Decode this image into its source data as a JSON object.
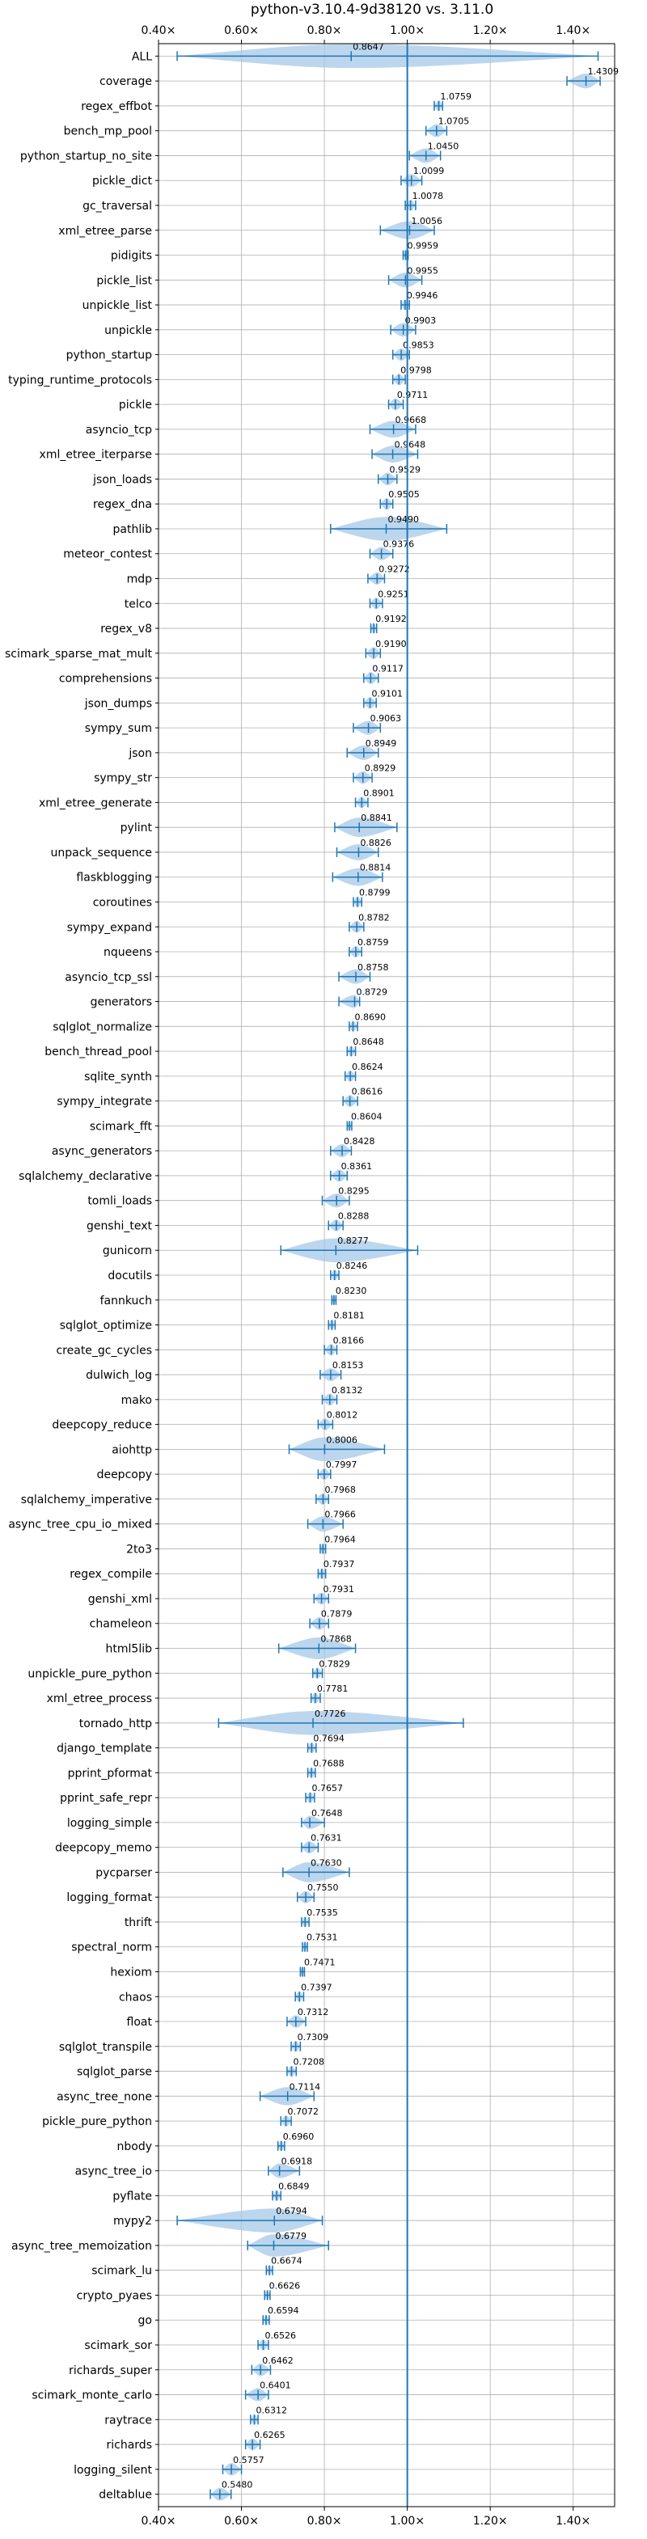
{
  "chart_data": {
    "type": "violin",
    "title": "python-v3.10.4-9d38120 vs. 3.11.0",
    "orientation": "horizontal",
    "xlim": [
      0.4,
      1.5
    ],
    "xticks": [
      0.4,
      0.6,
      0.8,
      1.0,
      1.2,
      1.4
    ],
    "xtick_labels": [
      "0.40×",
      "0.60×",
      "0.80×",
      "1.00×",
      "1.20×",
      "1.40×"
    ],
    "reference_line": 1.0,
    "grid": true,
    "colors": {
      "fill": "#a6c8e8",
      "line": "#1f77b4",
      "grid": "#b0b0b0"
    },
    "benchmarks": [
      {
        "name": "ALL",
        "value": 0.8647,
        "label": "0.8647",
        "min": 0.445,
        "max": 1.46
      },
      {
        "name": "coverage",
        "value": 1.4309,
        "label": "1.4309",
        "min": 1.385,
        "max": 1.465
      },
      {
        "name": "regex_effbot",
        "value": 1.0759,
        "label": "1.0759",
        "min": 1.065,
        "max": 1.085
      },
      {
        "name": "bench_mp_pool",
        "value": 1.0705,
        "label": "1.0705",
        "min": 1.045,
        "max": 1.095
      },
      {
        "name": "python_startup_no_site",
        "value": 1.045,
        "label": "1.0450",
        "min": 1.005,
        "max": 1.08
      },
      {
        "name": "pickle_dict",
        "value": 1.0099,
        "label": "1.0099",
        "min": 0.985,
        "max": 1.035
      },
      {
        "name": "gc_traversal",
        "value": 1.0078,
        "label": "1.0078",
        "min": 0.995,
        "max": 1.02
      },
      {
        "name": "xml_etree_parse",
        "value": 1.0056,
        "label": "1.0056",
        "min": 0.935,
        "max": 1.065
      },
      {
        "name": "pidigits",
        "value": 0.9959,
        "label": "0.9959",
        "min": 0.99,
        "max": 1.002
      },
      {
        "name": "pickle_list",
        "value": 0.9955,
        "label": "0.9955",
        "min": 0.955,
        "max": 1.035
      },
      {
        "name": "unpickle_list",
        "value": 0.9946,
        "label": "0.9946",
        "min": 0.985,
        "max": 1.005
      },
      {
        "name": "unpickle",
        "value": 0.9903,
        "label": "0.9903",
        "min": 0.96,
        "max": 1.02
      },
      {
        "name": "python_startup",
        "value": 0.9853,
        "label": "0.9853",
        "min": 0.965,
        "max": 1.005
      },
      {
        "name": "typing_runtime_protocols",
        "value": 0.9798,
        "label": "0.9798",
        "min": 0.965,
        "max": 0.995
      },
      {
        "name": "pickle",
        "value": 0.9711,
        "label": "0.9711",
        "min": 0.955,
        "max": 0.99
      },
      {
        "name": "asyncio_tcp",
        "value": 0.9668,
        "label": "0.9668",
        "min": 0.91,
        "max": 1.02
      },
      {
        "name": "xml_etree_iterparse",
        "value": 0.9648,
        "label": "0.9648",
        "min": 0.915,
        "max": 1.025
      },
      {
        "name": "json_loads",
        "value": 0.9529,
        "label": "0.9529",
        "min": 0.93,
        "max": 0.975
      },
      {
        "name": "regex_dna",
        "value": 0.9505,
        "label": "0.9505",
        "min": 0.935,
        "max": 0.965
      },
      {
        "name": "pathlib",
        "value": 0.949,
        "label": "0.9490",
        "min": 0.815,
        "max": 1.095
      },
      {
        "name": "meteor_contest",
        "value": 0.9376,
        "label": "0.9376",
        "min": 0.91,
        "max": 0.965
      },
      {
        "name": "mdp",
        "value": 0.9272,
        "label": "0.9272",
        "min": 0.905,
        "max": 0.945
      },
      {
        "name": "telco",
        "value": 0.9251,
        "label": "0.9251",
        "min": 0.91,
        "max": 0.94
      },
      {
        "name": "regex_v8",
        "value": 0.9192,
        "label": "0.9192",
        "min": 0.912,
        "max": 0.926
      },
      {
        "name": "scimark_sparse_mat_mult",
        "value": 0.919,
        "label": "0.9190",
        "min": 0.9,
        "max": 0.935
      },
      {
        "name": "comprehensions",
        "value": 0.9117,
        "label": "0.9117",
        "min": 0.895,
        "max": 0.93
      },
      {
        "name": "json_dumps",
        "value": 0.9101,
        "label": "0.9101",
        "min": 0.895,
        "max": 0.925
      },
      {
        "name": "sympy_sum",
        "value": 0.9063,
        "label": "0.9063",
        "min": 0.87,
        "max": 0.935
      },
      {
        "name": "json",
        "value": 0.8949,
        "label": "0.8949",
        "min": 0.855,
        "max": 0.93
      },
      {
        "name": "sympy_str",
        "value": 0.8929,
        "label": "0.8929",
        "min": 0.87,
        "max": 0.915
      },
      {
        "name": "xml_etree_generate",
        "value": 0.8901,
        "label": "0.8901",
        "min": 0.875,
        "max": 0.905
      },
      {
        "name": "pylint",
        "value": 0.8841,
        "label": "0.8841",
        "min": 0.825,
        "max": 0.975
      },
      {
        "name": "unpack_sequence",
        "value": 0.8826,
        "label": "0.8826",
        "min": 0.83,
        "max": 0.93
      },
      {
        "name": "flaskblogging",
        "value": 0.8814,
        "label": "0.8814",
        "min": 0.82,
        "max": 0.94
      },
      {
        "name": "coroutines",
        "value": 0.8799,
        "label": "0.8799",
        "min": 0.87,
        "max": 0.89
      },
      {
        "name": "sympy_expand",
        "value": 0.8782,
        "label": "0.8782",
        "min": 0.86,
        "max": 0.895
      },
      {
        "name": "nqueens",
        "value": 0.8759,
        "label": "0.8759",
        "min": 0.86,
        "max": 0.89
      },
      {
        "name": "asyncio_tcp_ssl",
        "value": 0.8758,
        "label": "0.8758",
        "min": 0.835,
        "max": 0.91
      },
      {
        "name": "generators",
        "value": 0.8729,
        "label": "0.8729",
        "min": 0.835,
        "max": 0.885
      },
      {
        "name": "sqlglot_normalize",
        "value": 0.869,
        "label": "0.8690",
        "min": 0.86,
        "max": 0.88
      },
      {
        "name": "bench_thread_pool",
        "value": 0.8648,
        "label": "0.8648",
        "min": 0.855,
        "max": 0.875
      },
      {
        "name": "sqlite_synth",
        "value": 0.8624,
        "label": "0.8624",
        "min": 0.85,
        "max": 0.875
      },
      {
        "name": "sympy_integrate",
        "value": 0.8616,
        "label": "0.8616",
        "min": 0.845,
        "max": 0.88
      },
      {
        "name": "scimark_fft",
        "value": 0.8604,
        "label": "0.8604",
        "min": 0.855,
        "max": 0.866
      },
      {
        "name": "async_generators",
        "value": 0.8428,
        "label": "0.8428",
        "min": 0.815,
        "max": 0.865
      },
      {
        "name": "sqlalchemy_declarative",
        "value": 0.8361,
        "label": "0.8361",
        "min": 0.815,
        "max": 0.855
      },
      {
        "name": "tomli_loads",
        "value": 0.8295,
        "label": "0.8295",
        "min": 0.795,
        "max": 0.86
      },
      {
        "name": "genshi_text",
        "value": 0.8288,
        "label": "0.8288",
        "min": 0.81,
        "max": 0.845
      },
      {
        "name": "gunicorn",
        "value": 0.8277,
        "label": "0.8277",
        "min": 0.695,
        "max": 1.025
      },
      {
        "name": "docutils",
        "value": 0.8246,
        "label": "0.8246",
        "min": 0.815,
        "max": 0.835
      },
      {
        "name": "fannkuch",
        "value": 0.823,
        "label": "0.8230",
        "min": 0.818,
        "max": 0.828
      },
      {
        "name": "sqlglot_optimize",
        "value": 0.8181,
        "label": "0.8181",
        "min": 0.81,
        "max": 0.826
      },
      {
        "name": "create_gc_cycles",
        "value": 0.8166,
        "label": "0.8166",
        "min": 0.8,
        "max": 0.83
      },
      {
        "name": "dulwich_log",
        "value": 0.8153,
        "label": "0.8153",
        "min": 0.79,
        "max": 0.84
      },
      {
        "name": "mako",
        "value": 0.8132,
        "label": "0.8132",
        "min": 0.795,
        "max": 0.83
      },
      {
        "name": "deepcopy_reduce",
        "value": 0.8012,
        "label": "0.8012",
        "min": 0.785,
        "max": 0.82
      },
      {
        "name": "aiohttp",
        "value": 0.8006,
        "label": "0.8006",
        "min": 0.715,
        "max": 0.945
      },
      {
        "name": "deepcopy",
        "value": 0.7997,
        "label": "0.7997",
        "min": 0.785,
        "max": 0.815
      },
      {
        "name": "sqlalchemy_imperative",
        "value": 0.7968,
        "label": "0.7968",
        "min": 0.78,
        "max": 0.81
      },
      {
        "name": "async_tree_cpu_io_mixed",
        "value": 0.7966,
        "label": "0.7966",
        "min": 0.76,
        "max": 0.845
      },
      {
        "name": "2to3",
        "value": 0.7964,
        "label": "0.7964",
        "min": 0.79,
        "max": 0.803
      },
      {
        "name": "regex_compile",
        "value": 0.7937,
        "label": "0.7937",
        "min": 0.785,
        "max": 0.803
      },
      {
        "name": "genshi_xml",
        "value": 0.7931,
        "label": "0.7931",
        "min": 0.775,
        "max": 0.81
      },
      {
        "name": "chameleon",
        "value": 0.7879,
        "label": "0.7879",
        "min": 0.765,
        "max": 0.81
      },
      {
        "name": "html5lib",
        "value": 0.7868,
        "label": "0.7868",
        "min": 0.69,
        "max": 0.875
      },
      {
        "name": "unpickle_pure_python",
        "value": 0.7829,
        "label": "0.7829",
        "min": 0.772,
        "max": 0.795
      },
      {
        "name": "xml_etree_process",
        "value": 0.7781,
        "label": "0.7781",
        "min": 0.768,
        "max": 0.79
      },
      {
        "name": "tornado_http",
        "value": 0.7726,
        "label": "0.7726",
        "min": 0.545,
        "max": 1.135
      },
      {
        "name": "django_template",
        "value": 0.7694,
        "label": "0.7694",
        "min": 0.76,
        "max": 0.78
      },
      {
        "name": "pprint_pformat",
        "value": 0.7688,
        "label": "0.7688",
        "min": 0.76,
        "max": 0.778
      },
      {
        "name": "pprint_safe_repr",
        "value": 0.7657,
        "label": "0.7657",
        "min": 0.755,
        "max": 0.776
      },
      {
        "name": "logging_simple",
        "value": 0.7648,
        "label": "0.7648",
        "min": 0.745,
        "max": 0.8
      },
      {
        "name": "deepcopy_memo",
        "value": 0.7631,
        "label": "0.7631",
        "min": 0.745,
        "max": 0.785
      },
      {
        "name": "pycparser",
        "value": 0.763,
        "label": "0.7630",
        "min": 0.7,
        "max": 0.86
      },
      {
        "name": "logging_format",
        "value": 0.755,
        "label": "0.7550",
        "min": 0.735,
        "max": 0.775
      },
      {
        "name": "thrift",
        "value": 0.7535,
        "label": "0.7535",
        "min": 0.745,
        "max": 0.763
      },
      {
        "name": "spectral_norm",
        "value": 0.7531,
        "label": "0.7531",
        "min": 0.747,
        "max": 0.759
      },
      {
        "name": "hexiom",
        "value": 0.7471,
        "label": "0.7471",
        "min": 0.742,
        "max": 0.752
      },
      {
        "name": "chaos",
        "value": 0.7397,
        "label": "0.7397",
        "min": 0.73,
        "max": 0.75
      },
      {
        "name": "float",
        "value": 0.7312,
        "label": "0.7312",
        "min": 0.71,
        "max": 0.755
      },
      {
        "name": "sqlglot_transpile",
        "value": 0.7309,
        "label": "0.7309",
        "min": 0.72,
        "max": 0.742
      },
      {
        "name": "sqlglot_parse",
        "value": 0.7208,
        "label": "0.7208",
        "min": 0.71,
        "max": 0.732
      },
      {
        "name": "async_tree_none",
        "value": 0.7114,
        "label": "0.7114",
        "min": 0.645,
        "max": 0.775
      },
      {
        "name": "pickle_pure_python",
        "value": 0.7072,
        "label": "0.7072",
        "min": 0.695,
        "max": 0.72
      },
      {
        "name": "nbody",
        "value": 0.696,
        "label": "0.6960",
        "min": 0.688,
        "max": 0.704
      },
      {
        "name": "async_tree_io",
        "value": 0.6918,
        "label": "0.6918",
        "min": 0.665,
        "max": 0.74
      },
      {
        "name": "pyflate",
        "value": 0.6849,
        "label": "0.6849",
        "min": 0.675,
        "max": 0.695
      },
      {
        "name": "mypy2",
        "value": 0.6794,
        "label": "0.6794",
        "min": 0.445,
        "max": 0.795
      },
      {
        "name": "async_tree_memoization",
        "value": 0.6779,
        "label": "0.6779",
        "min": 0.615,
        "max": 0.81
      },
      {
        "name": "scimark_lu",
        "value": 0.6674,
        "label": "0.6674",
        "min": 0.66,
        "max": 0.675
      },
      {
        "name": "crypto_pyaes",
        "value": 0.6626,
        "label": "0.6626",
        "min": 0.656,
        "max": 0.669
      },
      {
        "name": "go",
        "value": 0.6594,
        "label": "0.6594",
        "min": 0.652,
        "max": 0.667
      },
      {
        "name": "scimark_sor",
        "value": 0.6526,
        "label": "0.6526",
        "min": 0.64,
        "max": 0.665
      },
      {
        "name": "richards_super",
        "value": 0.6462,
        "label": "0.6462",
        "min": 0.625,
        "max": 0.67
      },
      {
        "name": "scimark_monte_carlo",
        "value": 0.6401,
        "label": "0.6401",
        "min": 0.61,
        "max": 0.665
      },
      {
        "name": "raytrace",
        "value": 0.6312,
        "label": "0.6312",
        "min": 0.622,
        "max": 0.64
      },
      {
        "name": "richards",
        "value": 0.6265,
        "label": "0.6265",
        "min": 0.61,
        "max": 0.645
      },
      {
        "name": "logging_silent",
        "value": 0.5757,
        "label": "0.5757",
        "min": 0.555,
        "max": 0.6
      },
      {
        "name": "deltablue",
        "value": 0.548,
        "label": "0.5480",
        "min": 0.525,
        "max": 0.575
      }
    ]
  }
}
